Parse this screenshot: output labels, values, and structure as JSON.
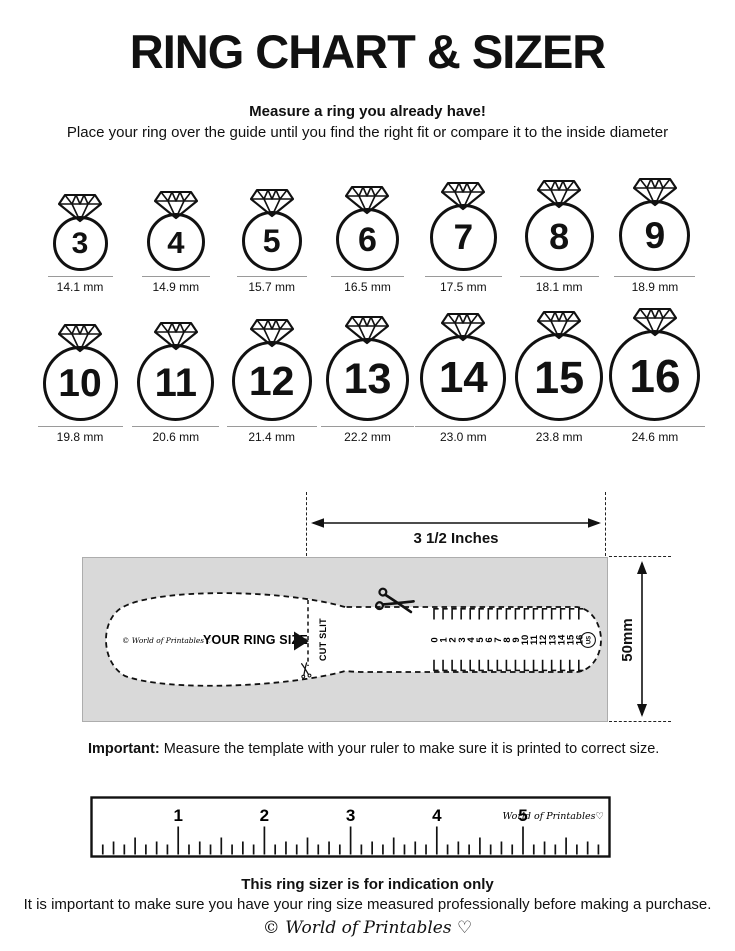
{
  "colors": {
    "ink": "#111111",
    "box_fill": "#d9d9d9"
  },
  "header": {
    "title": "RING CHART & SIZER",
    "subtitle_bold": "Measure a ring you already have!",
    "subtitle": "Place your ring over the guide until you find the right fit or compare it to the inside diameter"
  },
  "ring_chart": {
    "rows": [
      [
        {
          "size": "3",
          "diameter": "14.1 mm",
          "mm": 14.1
        },
        {
          "size": "4",
          "diameter": "14.9 mm",
          "mm": 14.9
        },
        {
          "size": "5",
          "diameter": "15.7 mm",
          "mm": 15.7
        },
        {
          "size": "6",
          "diameter": "16.5 mm",
          "mm": 16.5
        },
        {
          "size": "7",
          "diameter": "17.5 mm",
          "mm": 17.5
        },
        {
          "size": "8",
          "diameter": "18.1 mm",
          "mm": 18.1
        },
        {
          "size": "9",
          "diameter": "18.9 mm",
          "mm": 18.9
        }
      ],
      [
        {
          "size": "10",
          "diameter": "19.8 mm",
          "mm": 19.8
        },
        {
          "size": "11",
          "diameter": "20.6 mm",
          "mm": 20.6
        },
        {
          "size": "12",
          "diameter": "21.4 mm",
          "mm": 21.4
        },
        {
          "size": "13",
          "diameter": "22.2 mm",
          "mm": 22.2
        },
        {
          "size": "14",
          "diameter": "23.0 mm",
          "mm": 23.0
        },
        {
          "size": "15",
          "diameter": "23.8 mm",
          "mm": 23.8
        },
        {
          "size": "16",
          "diameter": "24.6 mm",
          "mm": 24.6
        }
      ]
    ]
  },
  "sizer": {
    "width_label": "3 1/2 Inches",
    "height_label": "50mm",
    "brand": "© World of Printables ♡",
    "your_ring_size_label": "YOUR RING SIZE",
    "cut_slit_label": "CUT SLIT",
    "scale_numbers": [
      "0",
      "1",
      "2",
      "3",
      "4",
      "5",
      "6",
      "7",
      "8",
      "9",
      "10",
      "11",
      "12",
      "13",
      "14",
      "15",
      "16"
    ],
    "scale_unit": "US"
  },
  "important": {
    "label": "Important:",
    "text": " Measure the template with your ruler to make sure it is printed to correct size."
  },
  "ruler": {
    "numbers": [
      "1",
      "2",
      "3",
      "4",
      "5"
    ],
    "brand": "World of Printables♡"
  },
  "footer": {
    "bold_line": "This ring sizer is for indication only",
    "line": "It is important to make sure you have your ring size measured professionally before making a purchase.",
    "logo": "© World of Printables ♡"
  }
}
